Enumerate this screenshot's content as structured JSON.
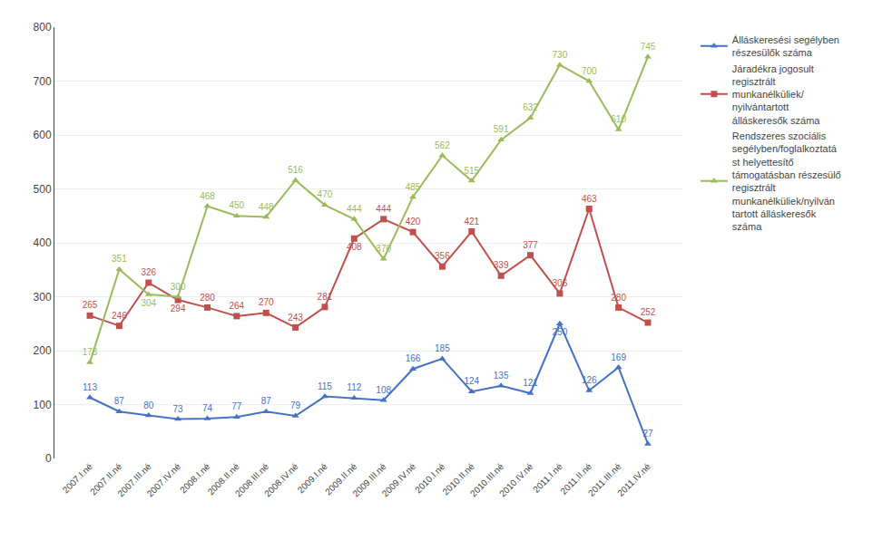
{
  "chart_data": {
    "type": "line",
    "categories": [
      "2007.I.né",
      "2007.II.né",
      "2007.III.né",
      "2007.IV.né",
      "2008.I.né",
      "2008.II.né",
      "2008.III.né",
      "2008.IV.né",
      "2009.I.né",
      "2009.II.né",
      "2009.III.né",
      "2009.IV.né",
      "2010.I.né",
      "2010.II.né",
      "2010.III.né",
      "2010.IV.né",
      "2011.I.né",
      "2011.II.né",
      "2011.III.né",
      "2011.IV.né"
    ],
    "series": [
      {
        "name": "Álláskeresési segélyben\nrészesülők száma",
        "color": "#4472C4",
        "marker": "triangle-up",
        "values": [
          113,
          87,
          80,
          73,
          74,
          77,
          87,
          79,
          115,
          112,
          108,
          166,
          185,
          124,
          135,
          121,
          250,
          126,
          169,
          27
        ]
      },
      {
        "name": "Járadékra jogosult\nregisztrált\nmunkanélküliek/\nnyilvántartott\nálláskeresők száma",
        "color": "#C0504D",
        "marker": "square",
        "values": [
          265,
          246,
          326,
          294,
          280,
          264,
          270,
          243,
          281,
          408,
          444,
          420,
          356,
          421,
          339,
          377,
          306,
          463,
          280,
          252
        ]
      },
      {
        "name": "Rendszeres szociális\nsegélyben/foglalkoztatá\nst helyettesítő\ntámogatásban részesülő\nregisztrált\nmunkanélküliek/nyilván\ntartott álláskeresők\nszáma",
        "color": "#9BBB59",
        "marker": "triangle-up",
        "values": [
          178,
          351,
          304,
          300,
          468,
          450,
          448,
          516,
          470,
          444,
          370,
          485,
          562,
          515,
          591,
          632,
          730,
          700,
          610,
          745
        ]
      }
    ],
    "ylim": [
      0,
      800
    ],
    "yticks": [
      0,
      100,
      200,
      300,
      400,
      500,
      600,
      700,
      800
    ],
    "grid": true,
    "legend": "right",
    "data_labels": true
  }
}
